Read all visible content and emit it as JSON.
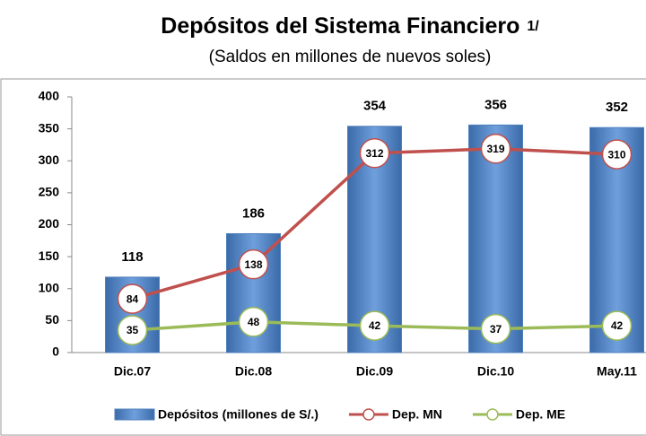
{
  "chart_data": {
    "type": "bar",
    "title": "Depósitos del Sistema Financiero",
    "title_note": "1/",
    "subtitle": "(Saldos en millones de nuevos soles)",
    "categories": [
      "Dic.07",
      "Dic.08",
      "Dic.09",
      "Dic.10",
      "May.11"
    ],
    "series": [
      {
        "name": "Depósitos (millones de S/.)",
        "type": "bar",
        "color": "#4f81bd",
        "values": [
          118,
          186,
          354,
          356,
          352
        ]
      },
      {
        "name": "Dep. MN",
        "type": "line",
        "color": "#c0504d",
        "values": [
          84,
          138,
          312,
          319,
          310
        ]
      },
      {
        "name": "Dep. ME",
        "type": "line",
        "color": "#9bbb59",
        "values": [
          35,
          48,
          42,
          37,
          42
        ]
      }
    ],
    "ylim": [
      0,
      400
    ],
    "yticks": [
      0,
      50,
      100,
      150,
      200,
      250,
      300,
      350,
      400
    ],
    "grid": false,
    "legend": "bottom"
  }
}
